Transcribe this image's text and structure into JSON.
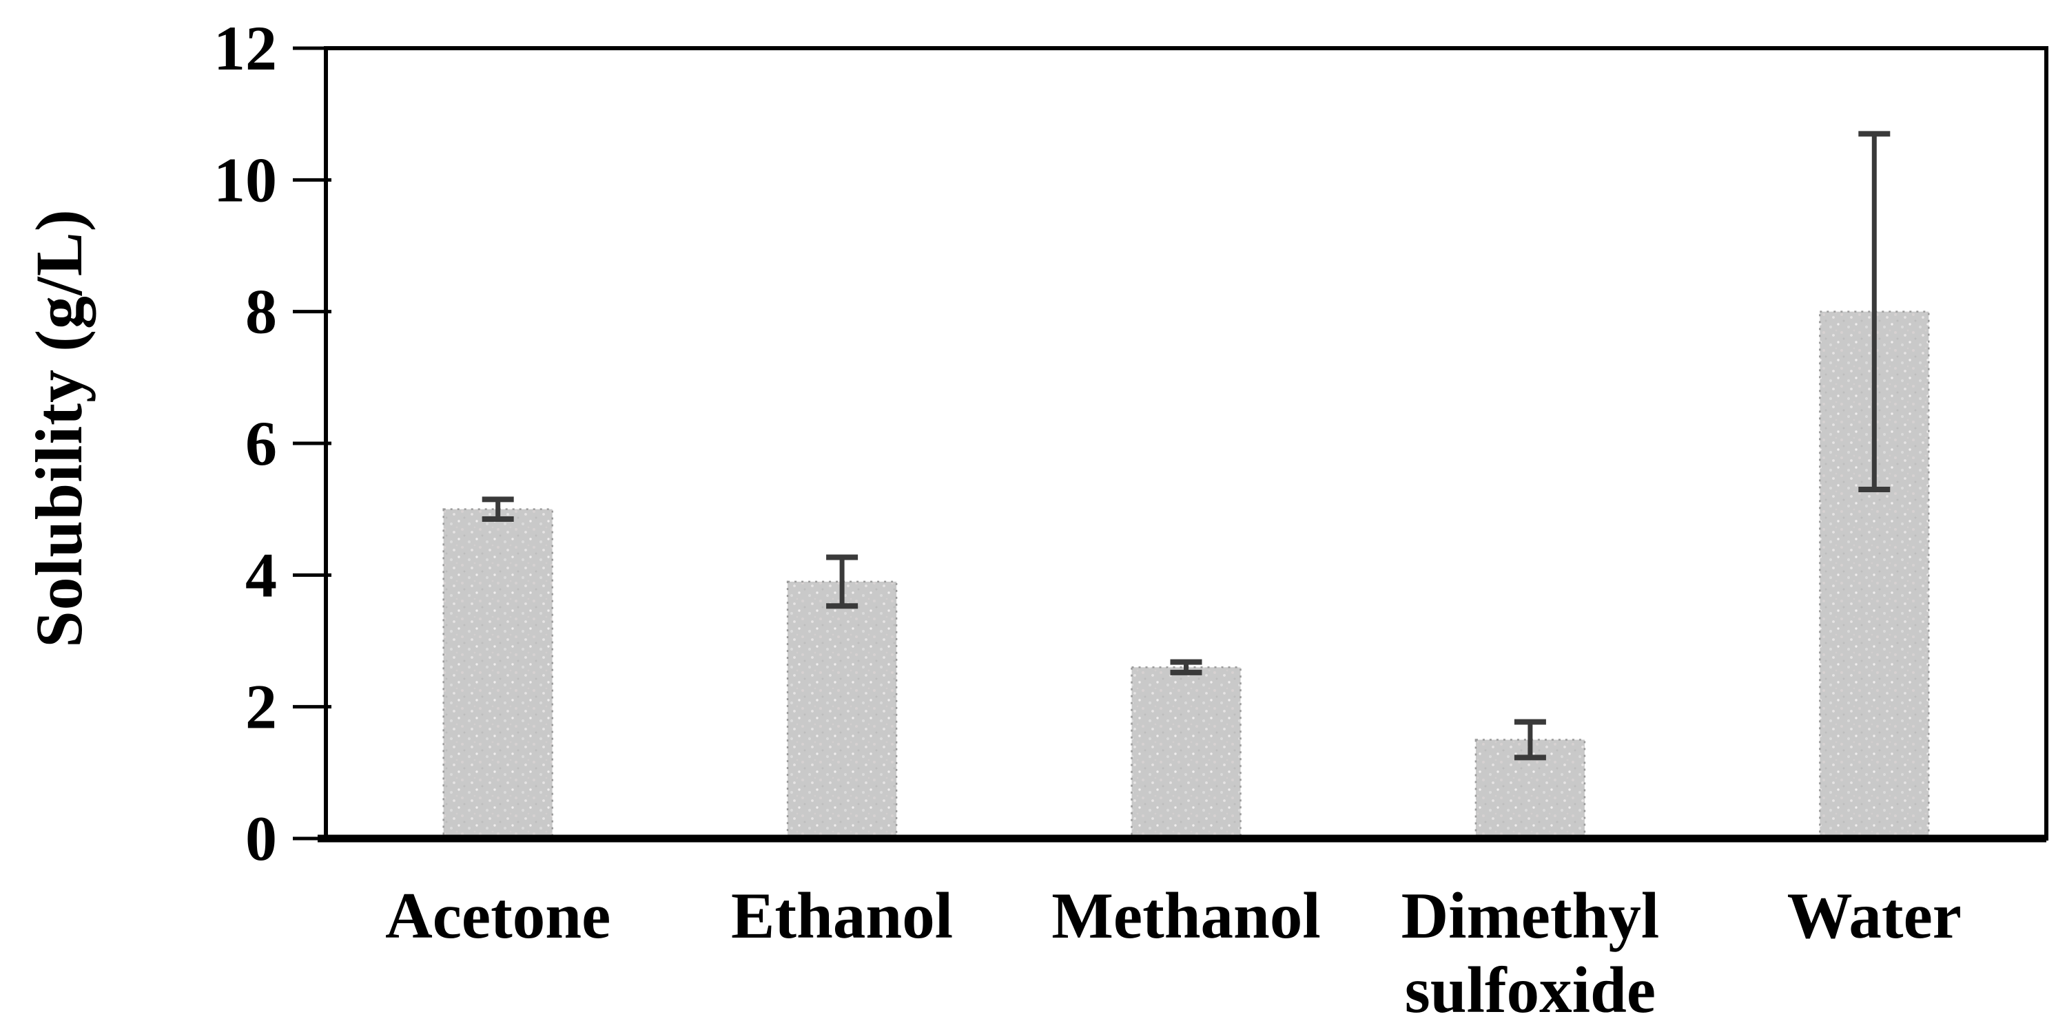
{
  "figure": {
    "background": "#ffffff"
  },
  "chart_data": {
    "type": "bar",
    "title": "",
    "xlabel": "",
    "ylabel": "Solubility (g/L)",
    "ylim": [
      0,
      12
    ],
    "yticks": [
      0,
      2,
      4,
      6,
      8,
      10,
      12
    ],
    "grid": false,
    "legend": null,
    "categories": [
      "Acetone",
      "Ethanol",
      "Methanol",
      "Dimethyl sulfoxide",
      "Water"
    ],
    "category_label_lines": [
      [
        "Acetone"
      ],
      [
        "Ethanol"
      ],
      [
        "Methanol"
      ],
      [
        "Dimethyl",
        "sulfoxide"
      ],
      [
        "Water"
      ]
    ],
    "values": [
      5.0,
      3.9,
      2.6,
      1.5,
      8.0
    ],
    "errors": [
      0.15,
      0.37,
      0.08,
      0.27,
      2.7
    ],
    "colors": {
      "bar_fill": "#c9c9c9",
      "bar_edge": "#9a9a9a",
      "error_bar": "#3a3a3a",
      "axis": "#000000",
      "text": "#000000"
    }
  }
}
